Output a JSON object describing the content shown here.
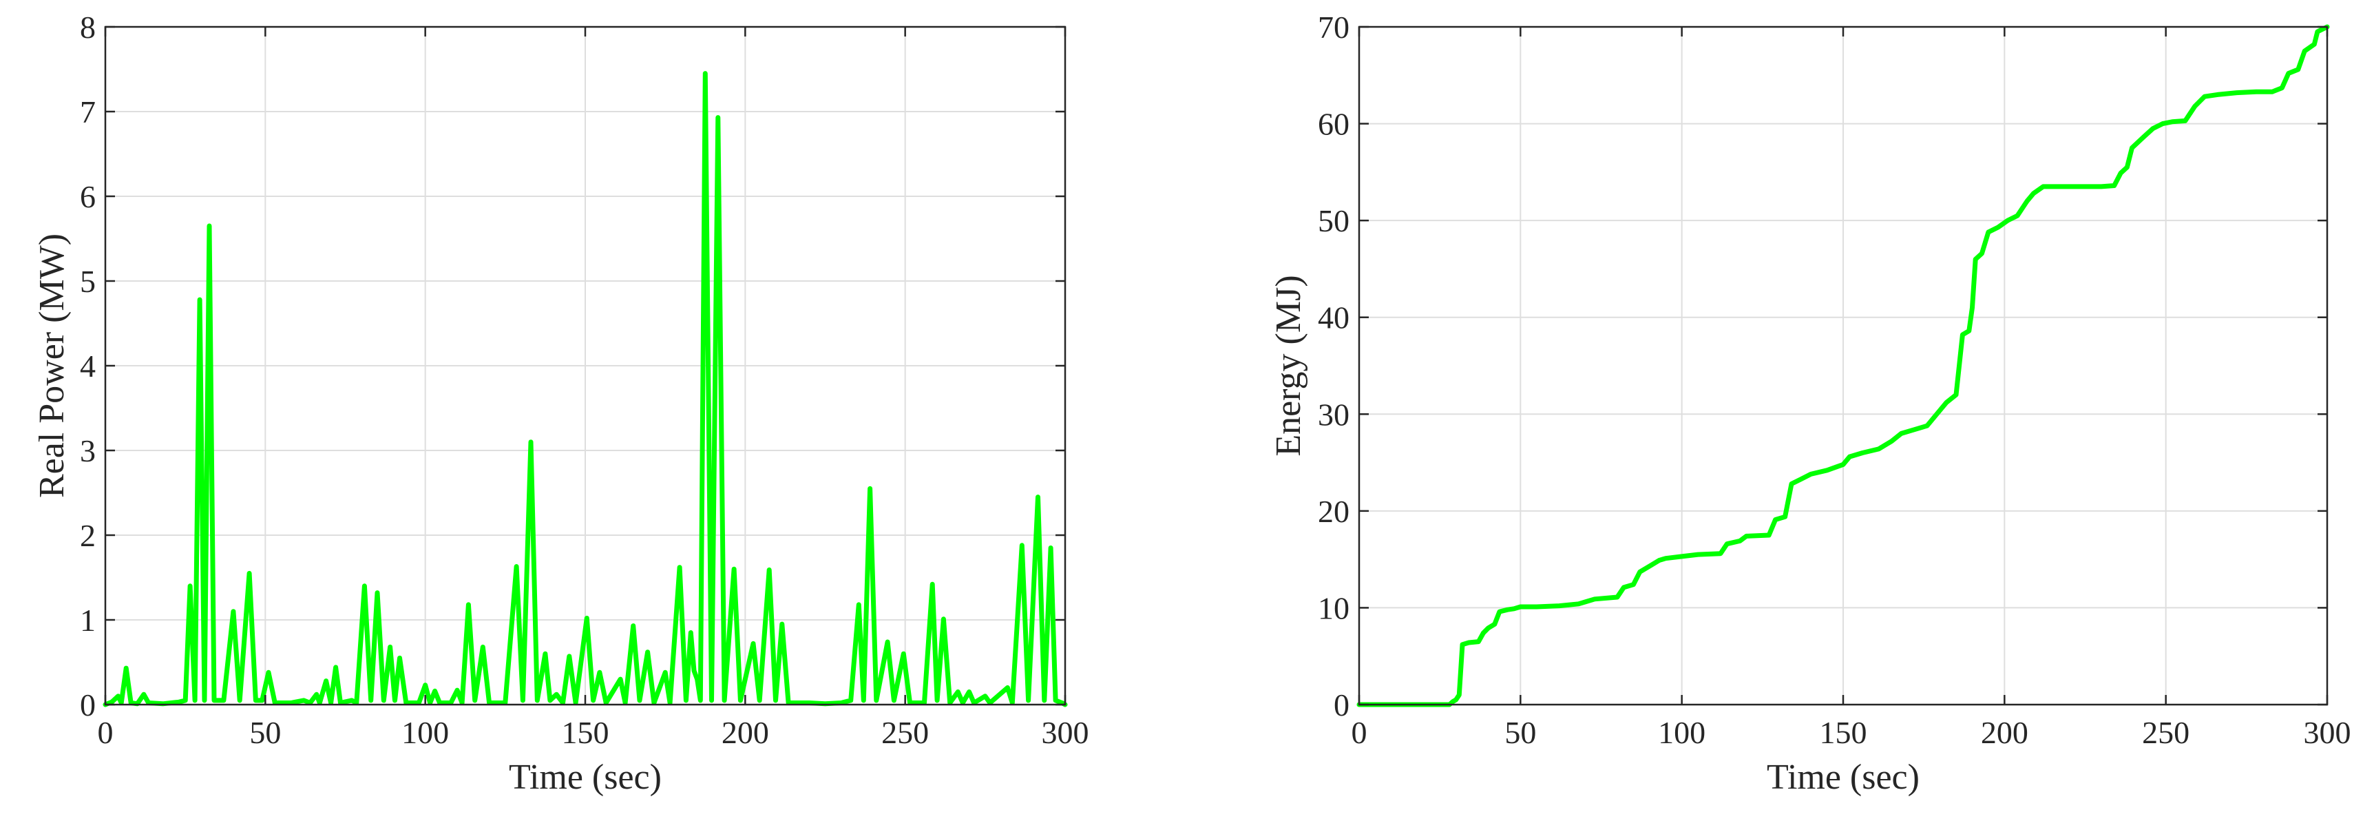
{
  "colors": {
    "series": "#00ff00",
    "axis": "#262626",
    "grid": "#dedede"
  },
  "chart_data": [
    {
      "type": "line",
      "title": "",
      "xlabel": "Time (sec)",
      "ylabel": "Real Power (MW)",
      "xlim": [
        0,
        300
      ],
      "ylim": [
        0,
        8
      ],
      "xticks": [
        "0",
        "50",
        "100",
        "150",
        "200",
        "250",
        "300"
      ],
      "yticks": [
        "0",
        "1",
        "2",
        "3",
        "4",
        "5",
        "6",
        "7",
        "8"
      ],
      "grid": true,
      "series": [
        {
          "points": [
            [
              0,
              0
            ],
            [
              2,
              0.03
            ],
            [
              4,
              0.1
            ],
            [
              5,
              0.02
            ],
            [
              6.5,
              0.43
            ],
            [
              8,
              0.02
            ],
            [
              10,
              0.01
            ],
            [
              12,
              0.12
            ],
            [
              13.5,
              0.02
            ],
            [
              18,
              0.01
            ],
            [
              23,
              0.03
            ],
            [
              25,
              0.05
            ],
            [
              26.5,
              1.4
            ],
            [
              28,
              0.05
            ],
            [
              29.5,
              4.78
            ],
            [
              31,
              0.05
            ],
            [
              32.5,
              5.65
            ],
            [
              34,
              0.05
            ],
            [
              37,
              0.05
            ],
            [
              40,
              1.1
            ],
            [
              42,
              0.05
            ],
            [
              45,
              1.55
            ],
            [
              47,
              0.05
            ],
            [
              49,
              0.05
            ],
            [
              51,
              0.38
            ],
            [
              53,
              0.02
            ],
            [
              58,
              0.02
            ],
            [
              62,
              0.05
            ],
            [
              64,
              0.02
            ],
            [
              66,
              0.12
            ],
            [
              67,
              0.02
            ],
            [
              69,
              0.28
            ],
            [
              70.5,
              0.02
            ],
            [
              72,
              0.44
            ],
            [
              73.5,
              0.02
            ],
            [
              77,
              0.05
            ],
            [
              78.5,
              0.02
            ],
            [
              81,
              1.4
            ],
            [
              83,
              0.05
            ],
            [
              85,
              1.32
            ],
            [
              87,
              0.05
            ],
            [
              89,
              0.68
            ],
            [
              90.5,
              0.05
            ],
            [
              92,
              0.55
            ],
            [
              94,
              0.02
            ],
            [
              98,
              0.02
            ],
            [
              100,
              0.23
            ],
            [
              101.5,
              0.02
            ],
            [
              103,
              0.16
            ],
            [
              104.5,
              0.02
            ],
            [
              108,
              0.02
            ],
            [
              110,
              0.17
            ],
            [
              111.5,
              0.02
            ],
            [
              113.5,
              1.18
            ],
            [
              115.5,
              0.05
            ],
            [
              118,
              0.68
            ],
            [
              120,
              0.02
            ],
            [
              125,
              0.02
            ],
            [
              128.5,
              1.63
            ],
            [
              130.5,
              0.05
            ],
            [
              133,
              3.1
            ],
            [
              135,
              0.05
            ],
            [
              137.5,
              0.6
            ],
            [
              139,
              0.05
            ],
            [
              141,
              0.12
            ],
            [
              143,
              0.02
            ],
            [
              145,
              0.57
            ],
            [
              147,
              0.02
            ],
            [
              150.5,
              1.02
            ],
            [
              152.5,
              0.05
            ],
            [
              154.5,
              0.38
            ],
            [
              156.5,
              0.02
            ],
            [
              161,
              0.3
            ],
            [
              162.5,
              0.02
            ],
            [
              165,
              0.93
            ],
            [
              167,
              0.05
            ],
            [
              169.5,
              0.62
            ],
            [
              171.5,
              0.02
            ],
            [
              175,
              0.38
            ],
            [
              176.5,
              0.02
            ],
            [
              179.5,
              1.62
            ],
            [
              181.5,
              0.05
            ],
            [
              183,
              0.85
            ],
            [
              184,
              0.4
            ],
            [
              185,
              0.3
            ],
            [
              186,
              0.05
            ],
            [
              187.5,
              7.45
            ],
            [
              189.5,
              0.05
            ],
            [
              191.5,
              6.93
            ],
            [
              193.5,
              0.05
            ],
            [
              196.5,
              1.6
            ],
            [
              198.5,
              0.05
            ],
            [
              202.5,
              0.72
            ],
            [
              204.5,
              0.05
            ],
            [
              207.5,
              1.59
            ],
            [
              209.5,
              0.05
            ],
            [
              211.5,
              0.95
            ],
            [
              213.5,
              0.02
            ],
            [
              220,
              0.02
            ],
            [
              225,
              0.01
            ],
            [
              230,
              0.02
            ],
            [
              233,
              0.05
            ],
            [
              235.5,
              1.18
            ],
            [
              237,
              0.05
            ],
            [
              239,
              2.55
            ],
            [
              241,
              0.05
            ],
            [
              244.5,
              0.74
            ],
            [
              246.5,
              0.05
            ],
            [
              249.5,
              0.6
            ],
            [
              251.5,
              0.02
            ],
            [
              256,
              0.02
            ],
            [
              258.5,
              1.42
            ],
            [
              260,
              0.05
            ],
            [
              262,
              1.01
            ],
            [
              264,
              0.02
            ],
            [
              266.5,
              0.15
            ],
            [
              268,
              0.02
            ],
            [
              270,
              0.15
            ],
            [
              271.5,
              0.02
            ],
            [
              275,
              0.1
            ],
            [
              276.5,
              0.02
            ],
            [
              282,
              0.2
            ],
            [
              283.5,
              0.02
            ],
            [
              286.5,
              1.88
            ],
            [
              288.5,
              0.05
            ],
            [
              291.5,
              2.45
            ],
            [
              293.5,
              0.05
            ],
            [
              295.5,
              1.85
            ],
            [
              297,
              0.05
            ],
            [
              299,
              0.02
            ],
            [
              300,
              0
            ]
          ]
        }
      ]
    },
    {
      "type": "line",
      "title": "",
      "xlabel": "Time (sec)",
      "ylabel": "Energy (MJ)",
      "xlim": [
        0,
        300
      ],
      "ylim": [
        0,
        70
      ],
      "xticks": [
        "0",
        "50",
        "100",
        "150",
        "200",
        "250",
        "300"
      ],
      "yticks": [
        "0",
        "10",
        "20",
        "30",
        "40",
        "50",
        "60",
        "70"
      ],
      "grid": true,
      "series": [
        {
          "points": [
            [
              0,
              0
            ],
            [
              28,
              0
            ],
            [
              29,
              0.3
            ],
            [
              30,
              0.5
            ],
            [
              31,
              1
            ],
            [
              32,
              6.2
            ],
            [
              34,
              6.4
            ],
            [
              37,
              6.5
            ],
            [
              38.5,
              7.4
            ],
            [
              40,
              7.9
            ],
            [
              42,
              8.3
            ],
            [
              43.5,
              9.6
            ],
            [
              46,
              9.8
            ],
            [
              48,
              9.9
            ],
            [
              50,
              10.1
            ],
            [
              55,
              10.1
            ],
            [
              62,
              10.2
            ],
            [
              68,
              10.4
            ],
            [
              70,
              10.6
            ],
            [
              73,
              10.9
            ],
            [
              80,
              11.1
            ],
            [
              82,
              12.1
            ],
            [
              85,
              12.4
            ],
            [
              87,
              13.7
            ],
            [
              90,
              14.3
            ],
            [
              93,
              14.9
            ],
            [
              95,
              15.1
            ],
            [
              100,
              15.3
            ],
            [
              105,
              15.5
            ],
            [
              112,
              15.6
            ],
            [
              114,
              16.6
            ],
            [
              118,
              16.9
            ],
            [
              120,
              17.4
            ],
            [
              127,
              17.5
            ],
            [
              129,
              19.1
            ],
            [
              132,
              19.4
            ],
            [
              134,
              22.8
            ],
            [
              137,
              23.3
            ],
            [
              140,
              23.8
            ],
            [
              145,
              24.2
            ],
            [
              150,
              24.8
            ],
            [
              152,
              25.6
            ],
            [
              156,
              26
            ],
            [
              161,
              26.4
            ],
            [
              165,
              27.2
            ],
            [
              168,
              28
            ],
            [
              172,
              28.4
            ],
            [
              176,
              28.8
            ],
            [
              179,
              30
            ],
            [
              182,
              31.2
            ],
            [
              185,
              32
            ],
            [
              187,
              38.2
            ],
            [
              189,
              38.6
            ],
            [
              190,
              41
            ],
            [
              191,
              46
            ],
            [
              193,
              46.6
            ],
            [
              195,
              48.8
            ],
            [
              198,
              49.3
            ],
            [
              201,
              50
            ],
            [
              204,
              50.5
            ],
            [
              207,
              52
            ],
            [
              209,
              52.8
            ],
            [
              212,
              53.5
            ],
            [
              220,
              53.5
            ],
            [
              230,
              53.5
            ],
            [
              234,
              53.6
            ],
            [
              236,
              54.9
            ],
            [
              238,
              55.5
            ],
            [
              239.5,
              57.5
            ],
            [
              243,
              58.6
            ],
            [
              246,
              59.5
            ],
            [
              249,
              60
            ],
            [
              252,
              60.2
            ],
            [
              256,
              60.3
            ],
            [
              259,
              61.8
            ],
            [
              262,
              62.8
            ],
            [
              266,
              63
            ],
            [
              272,
              63.2
            ],
            [
              278,
              63.3
            ],
            [
              283,
              63.3
            ],
            [
              286,
              63.7
            ],
            [
              288,
              65.2
            ],
            [
              291,
              65.6
            ],
            [
              293,
              67.5
            ],
            [
              296,
              68.2
            ],
            [
              297,
              69.5
            ],
            [
              300,
              70
            ]
          ]
        }
      ]
    }
  ]
}
